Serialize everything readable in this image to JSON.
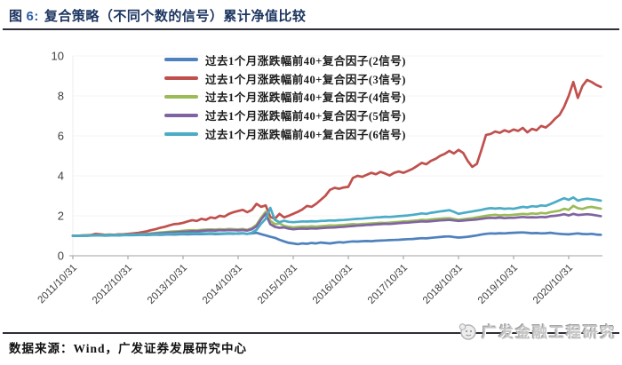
{
  "figure": {
    "label_prefix": "图",
    "label_number": "6:",
    "title": "复合策略（不同个数的信号）累计净值比较",
    "source": "数据来源：Wind，广发证券发展研究中心",
    "watermark": "广发金融工程研究",
    "title_color": "#1c3560",
    "rule_color": "#2e2e3a"
  },
  "chart_data": {
    "type": "line",
    "title": "复合策略（不同个数的信号）累计净值比较",
    "xlabel": "",
    "ylabel": "",
    "x_start": "2011/10/31",
    "x_frequency": "monthly",
    "x_tick_labels": [
      "2011/10/31",
      "2012/10/31",
      "2013/10/31",
      "2014/10/31",
      "2015/10/31",
      "2016/10/31",
      "2017/10/31",
      "2018/10/31",
      "2019/10/31",
      "2020/10/31"
    ],
    "y_ticks": [
      0,
      2,
      4,
      6,
      8,
      10
    ],
    "ylim": [
      0,
      10
    ],
    "grid": "faint-horizontal",
    "legend_position": "top-center-inside",
    "axis_color": "#c0c0c0",
    "tick_label_color": "#404040",
    "series": [
      {
        "name": "过去1个月涨跌幅前40+复合因子(2信号)",
        "color": "#4F81BD",
        "values": [
          1.0,
          1.0,
          1.01,
          1.0,
          1.02,
          1.03,
          1.02,
          1.01,
          1.02,
          1.03,
          1.02,
          1.03,
          1.04,
          1.03,
          1.04,
          1.05,
          1.04,
          1.05,
          1.06,
          1.05,
          1.06,
          1.07,
          1.06,
          1.07,
          1.08,
          1.07,
          1.08,
          1.09,
          1.08,
          1.09,
          1.1,
          1.08,
          1.09,
          1.1,
          1.11,
          1.1,
          1.12,
          1.13,
          1.1,
          1.12,
          1.15,
          1.08,
          1.02,
          0.95,
          0.9,
          0.8,
          0.72,
          0.65,
          0.62,
          0.58,
          0.62,
          0.6,
          0.64,
          0.62,
          0.66,
          0.64,
          0.62,
          0.65,
          0.68,
          0.66,
          0.7,
          0.72,
          0.71,
          0.73,
          0.74,
          0.73,
          0.75,
          0.76,
          0.77,
          0.78,
          0.79,
          0.8,
          0.82,
          0.83,
          0.84,
          0.86,
          0.88,
          0.87,
          0.9,
          0.92,
          0.94,
          0.96,
          0.97,
          0.94,
          0.91,
          0.93,
          0.95,
          0.98,
          1.02,
          1.06,
          1.1,
          1.12,
          1.11,
          1.13,
          1.12,
          1.14,
          1.15,
          1.16,
          1.17,
          1.15,
          1.13,
          1.14,
          1.12,
          1.13,
          1.15,
          1.12,
          1.1,
          1.08,
          1.07,
          1.1,
          1.12,
          1.09,
          1.08,
          1.1,
          1.06,
          1.05
        ]
      },
      {
        "name": "过去1个月涨跌幅前40+复合因子(3信号)",
        "color": "#C0504D",
        "values": [
          1.0,
          1.0,
          1.02,
          1.03,
          1.04,
          1.1,
          1.07,
          1.05,
          1.06,
          1.05,
          1.07,
          1.08,
          1.1,
          1.12,
          1.14,
          1.18,
          1.22,
          1.28,
          1.33,
          1.4,
          1.45,
          1.52,
          1.58,
          1.6,
          1.65,
          1.72,
          1.78,
          1.74,
          1.85,
          1.8,
          1.92,
          1.88,
          2.0,
          1.96,
          2.1,
          2.18,
          2.24,
          2.3,
          2.18,
          2.3,
          2.6,
          2.45,
          2.52,
          1.95,
          1.85,
          2.1,
          1.92,
          2.0,
          2.1,
          2.2,
          2.32,
          2.5,
          2.45,
          2.6,
          2.8,
          3.0,
          3.3,
          3.4,
          3.35,
          3.42,
          3.45,
          3.9,
          4.0,
          3.95,
          4.05,
          4.15,
          4.08,
          4.2,
          4.12,
          4.02,
          4.15,
          4.22,
          4.15,
          4.25,
          4.35,
          4.5,
          4.65,
          4.58,
          4.75,
          4.85,
          5.0,
          5.1,
          5.25,
          5.12,
          5.3,
          5.15,
          4.75,
          4.45,
          4.6,
          5.3,
          6.05,
          6.1,
          6.22,
          6.15,
          6.28,
          6.2,
          6.32,
          6.25,
          6.4,
          6.18,
          6.35,
          6.28,
          6.5,
          6.42,
          6.6,
          6.85,
          7.05,
          7.45,
          8.0,
          8.7,
          7.9,
          8.5,
          8.8,
          8.7,
          8.55,
          8.45
        ]
      },
      {
        "name": "过去1个月涨跌幅前40+复合因子(4信号)",
        "color": "#9BBB59",
        "values": [
          1.0,
          1.0,
          1.01,
          1.02,
          1.02,
          1.04,
          1.03,
          1.04,
          1.05,
          1.04,
          1.05,
          1.06,
          1.06,
          1.07,
          1.08,
          1.09,
          1.1,
          1.12,
          1.14,
          1.16,
          1.18,
          1.2,
          1.22,
          1.23,
          1.25,
          1.27,
          1.28,
          1.27,
          1.3,
          1.31,
          1.32,
          1.31,
          1.33,
          1.32,
          1.34,
          1.33,
          1.32,
          1.34,
          1.3,
          1.38,
          1.55,
          1.9,
          2.2,
          1.75,
          1.58,
          1.62,
          1.5,
          1.45,
          1.42,
          1.44,
          1.46,
          1.45,
          1.47,
          1.46,
          1.48,
          1.5,
          1.52,
          1.51,
          1.53,
          1.54,
          1.56,
          1.58,
          1.57,
          1.59,
          1.6,
          1.62,
          1.63,
          1.65,
          1.64,
          1.66,
          1.68,
          1.7,
          1.72,
          1.73,
          1.75,
          1.77,
          1.8,
          1.79,
          1.82,
          1.84,
          1.86,
          1.87,
          1.88,
          1.84,
          1.8,
          1.83,
          1.86,
          1.88,
          1.92,
          1.96,
          2.0,
          2.03,
          2.05,
          2.02,
          2.04,
          2.03,
          2.05,
          2.07,
          2.1,
          2.08,
          2.12,
          2.1,
          2.14,
          2.12,
          2.18,
          2.22,
          2.26,
          2.35,
          2.3,
          2.5,
          2.38,
          2.34,
          2.42,
          2.45,
          2.4,
          2.36
        ]
      },
      {
        "name": "过去1个月涨跌幅前40+复合因子(5信号)",
        "color": "#8064A2",
        "values": [
          1.0,
          1.0,
          1.01,
          1.01,
          1.02,
          1.03,
          1.02,
          1.03,
          1.04,
          1.03,
          1.04,
          1.05,
          1.05,
          1.06,
          1.07,
          1.08,
          1.08,
          1.1,
          1.11,
          1.13,
          1.14,
          1.16,
          1.17,
          1.18,
          1.2,
          1.21,
          1.23,
          1.22,
          1.25,
          1.26,
          1.27,
          1.26,
          1.28,
          1.27,
          1.29,
          1.28,
          1.27,
          1.29,
          1.26,
          1.33,
          1.48,
          1.82,
          2.1,
          1.58,
          1.45,
          1.4,
          1.42,
          1.36,
          1.33,
          1.35,
          1.36,
          1.35,
          1.37,
          1.36,
          1.38,
          1.4,
          1.41,
          1.42,
          1.44,
          1.45,
          1.47,
          1.49,
          1.51,
          1.52,
          1.54,
          1.55,
          1.57,
          1.58,
          1.6,
          1.59,
          1.61,
          1.63,
          1.65,
          1.66,
          1.68,
          1.7,
          1.72,
          1.71,
          1.73,
          1.75,
          1.77,
          1.78,
          1.8,
          1.77,
          1.74,
          1.76,
          1.78,
          1.8,
          1.82,
          1.85,
          1.88,
          1.9,
          1.89,
          1.91,
          1.88,
          1.9,
          1.9,
          1.92,
          1.94,
          1.92,
          1.93,
          1.92,
          1.94,
          1.93,
          1.98,
          2.0,
          2.03,
          2.08,
          2.02,
          2.1,
          2.04,
          2.06,
          2.08,
          2.06,
          2.02,
          1.98
        ]
      },
      {
        "name": "过去1个月涨跌幅前40+复合因子(6信号)",
        "color": "#4BACC6",
        "values": [
          1.0,
          1.0,
          1.0,
          1.01,
          1.01,
          1.02,
          1.02,
          1.03,
          1.03,
          1.02,
          1.03,
          1.04,
          1.04,
          1.05,
          1.05,
          1.06,
          1.06,
          1.07,
          1.08,
          1.08,
          1.09,
          1.1,
          1.1,
          1.11,
          1.11,
          1.12,
          1.12,
          1.11,
          1.13,
          1.12,
          1.13,
          1.12,
          1.11,
          1.12,
          1.13,
          1.12,
          1.1,
          1.12,
          1.09,
          1.16,
          1.3,
          1.6,
          1.85,
          2.4,
          1.8,
          1.68,
          1.75,
          1.7,
          1.68,
          1.7,
          1.72,
          1.71,
          1.73,
          1.72,
          1.74,
          1.75,
          1.77,
          1.76,
          1.78,
          1.79,
          1.81,
          1.83,
          1.85,
          1.86,
          1.88,
          1.9,
          1.92,
          1.93,
          1.95,
          1.94,
          1.96,
          1.98,
          2.0,
          2.02,
          2.05,
          2.08,
          2.12,
          2.1,
          2.15,
          2.18,
          2.22,
          2.25,
          2.28,
          2.2,
          2.1,
          2.14,
          2.18,
          2.22,
          2.26,
          2.3,
          2.35,
          2.38,
          2.36,
          2.38,
          2.35,
          2.37,
          2.35,
          2.4,
          2.45,
          2.42,
          2.48,
          2.46,
          2.52,
          2.5,
          2.58,
          2.68,
          2.78,
          2.88,
          2.8,
          2.92,
          2.76,
          2.82,
          2.86,
          2.83,
          2.8,
          2.76
        ]
      }
    ]
  }
}
